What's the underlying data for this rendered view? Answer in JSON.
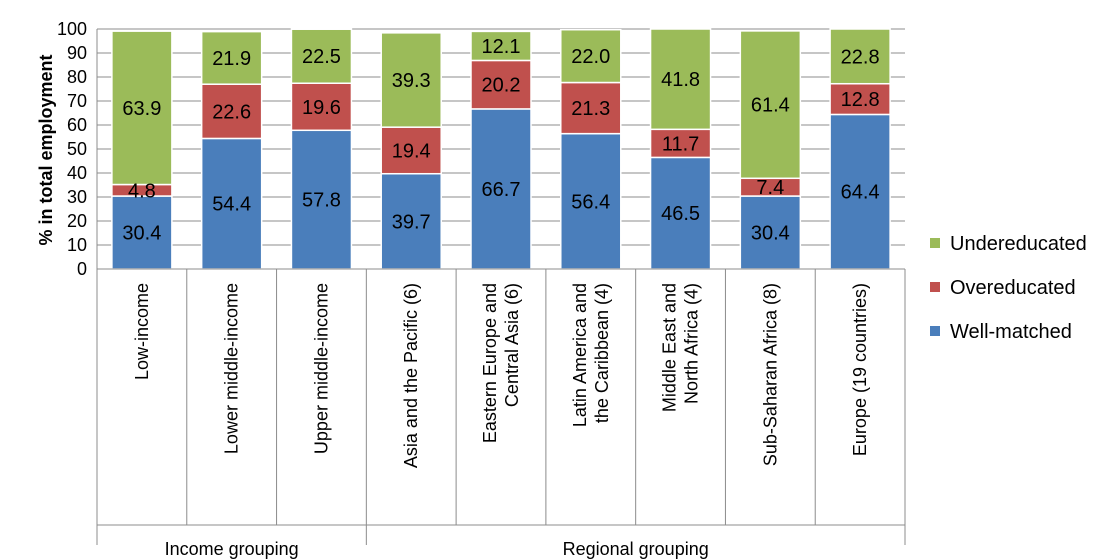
{
  "chart_data": {
    "type": "bar",
    "stacked": true,
    "ylabel": "% in total employment",
    "ylim": [
      0,
      100
    ],
    "yticks": [
      0,
      10,
      20,
      30,
      40,
      50,
      60,
      70,
      80,
      90,
      100
    ],
    "grid": true,
    "legend_position": "right",
    "categories": [
      "Low-income",
      "Lower middle-income",
      "Upper middle-income",
      "Asia and the Pacific (6)",
      "Eastern Europe and Central Asia (6)",
      "Latin America and the Caribbean (4)",
      "Middle East and North Africa (4)",
      "Sub-Saharan Africa (8)",
      "Europe (19 countries)"
    ],
    "groups": [
      {
        "label": "Income grouping",
        "categories": [
          0,
          1,
          2
        ]
      },
      {
        "label": "Regional grouping",
        "categories": [
          3,
          4,
          5,
          6,
          7,
          8
        ]
      }
    ],
    "series": [
      {
        "name": "Well-matched",
        "color": "#4a7ebb",
        "values": [
          30.4,
          54.4,
          57.8,
          39.7,
          66.7,
          56.4,
          46.5,
          30.4,
          64.4
        ]
      },
      {
        "name": "Overeducated",
        "color": "#c0504d",
        "values": [
          4.8,
          22.6,
          19.6,
          19.4,
          20.2,
          21.3,
          11.7,
          7.4,
          12.8
        ]
      },
      {
        "name": "Undereducated",
        "color": "#9bbb59",
        "values": [
          63.9,
          21.9,
          22.5,
          39.3,
          12.1,
          22.0,
          41.8,
          61.4,
          22.8
        ]
      }
    ]
  }
}
